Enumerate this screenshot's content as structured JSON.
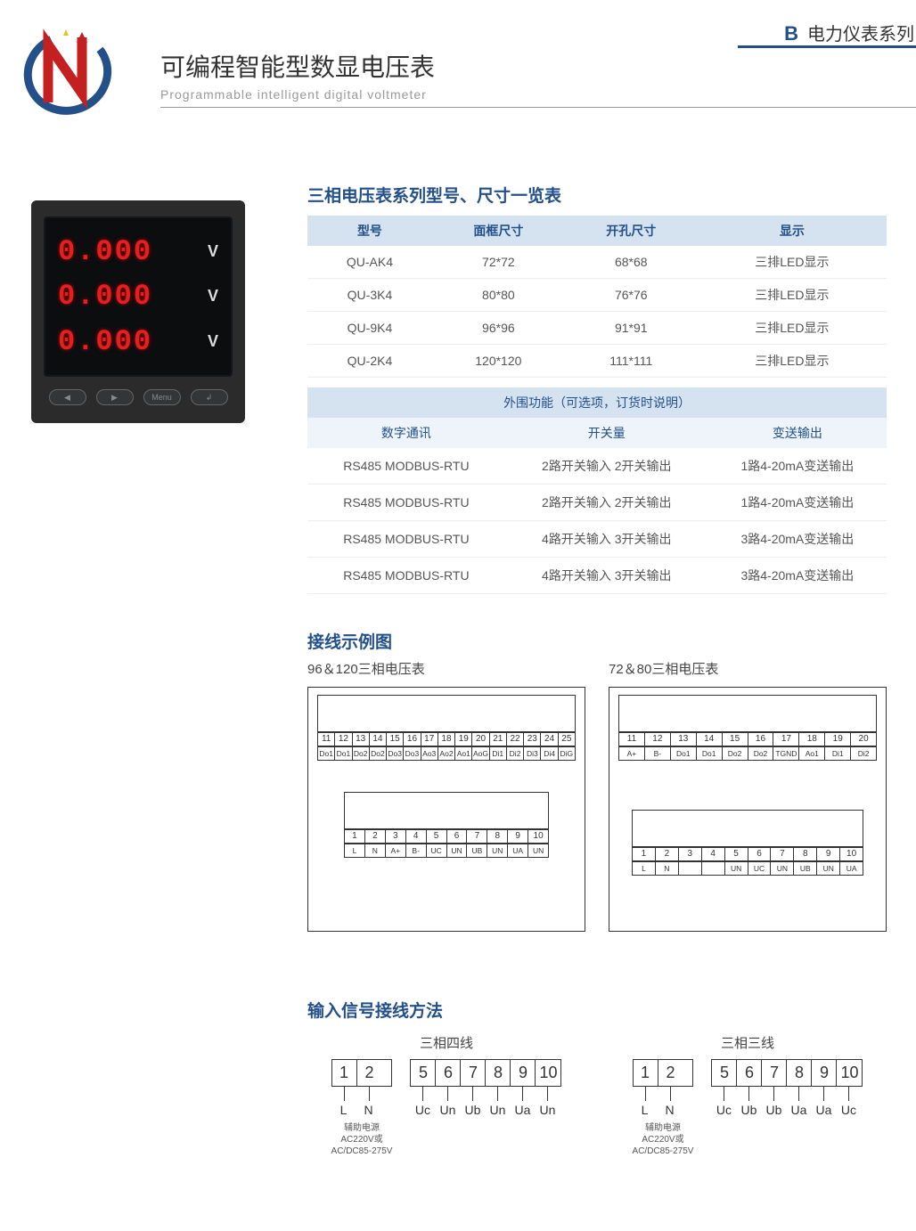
{
  "colors": {
    "brand": "#235088",
    "headerbg": "#d5e3f1",
    "subheaderbg": "#eef4fa",
    "text": "#333333",
    "muted": "#555555",
    "led": "#e12020",
    "panel": "#2b2b2c"
  },
  "header": {
    "letter": "B",
    "series": "电力仪表系列"
  },
  "title": {
    "main": "可编程智能型数显电压表",
    "sub": "Programmable intelligent digital voltmeter"
  },
  "photo": {
    "reading": "0.000",
    "unit": "V",
    "buttons": [
      "◀",
      "▶",
      "Menu",
      "↲"
    ]
  },
  "section1": {
    "title": "三相电压表系列型号、尺寸一览表",
    "columns": [
      "型号",
      "面框尺寸",
      "开孔尺寸",
      "显示"
    ],
    "rows": [
      [
        "QU-AK4",
        "72*72",
        "68*68",
        "三排LED显示"
      ],
      [
        "QU-3K4",
        "80*80",
        "76*76",
        "三排LED显示"
      ],
      [
        "QU-9K4",
        "96*96",
        "91*91",
        "三排LED显示"
      ],
      [
        "QU-2K4",
        "120*120",
        "111*111",
        "三排LED显示"
      ]
    ]
  },
  "section1b": {
    "super": "外围功能（可选项，订货时说明）",
    "cols": [
      "数字通讯",
      "开关量",
      "变送输出"
    ],
    "rows": [
      [
        "RS485 MODBUS-RTU",
        "2路开关输入 2开关输出",
        "1路4-20mA变送输出"
      ],
      [
        "RS485 MODBUS-RTU",
        "2路开关输入 2开关输出",
        "1路4-20mA变送输出"
      ],
      [
        "RS485 MODBUS-RTU",
        "4路开关输入 3开关输出",
        "3路4-20mA变送输出"
      ],
      [
        "RS485 MODBUS-RTU",
        "4路开关输入 3开关输出",
        "3路4-20mA变送输出"
      ]
    ]
  },
  "section2": {
    "title": "接线示例图",
    "left": {
      "label": "96＆120三相电压表",
      "top_nums": [
        "11",
        "12",
        "13",
        "14",
        "15",
        "16",
        "17",
        "18",
        "19",
        "20",
        "21",
        "22",
        "23",
        "24",
        "25"
      ],
      "top_lbls": [
        "Do1",
        "Do1",
        "Do2",
        "Do2",
        "Do3",
        "Do3",
        "Ao3",
        "Ao2",
        "Ao1",
        "AoG",
        "Di1",
        "Di2",
        "Di3",
        "Di4",
        "DiG"
      ],
      "bot_nums": [
        "1",
        "2",
        "3",
        "4",
        "5",
        "6",
        "7",
        "8",
        "9",
        "10"
      ],
      "bot_lbls": [
        "L",
        "N",
        "A+",
        "B-",
        "UC",
        "UN",
        "UB",
        "UN",
        "UA",
        "UN"
      ]
    },
    "right": {
      "label": "72＆80三相电压表",
      "top_nums": [
        "11",
        "12",
        "13",
        "14",
        "15",
        "16",
        "17",
        "18",
        "19",
        "20"
      ],
      "top_lbls": [
        "A+",
        "B-",
        "Do1",
        "Do1",
        "Do2",
        "Do2",
        "TGND",
        "Ao1",
        "Di1",
        "Di2"
      ],
      "bot_nums": [
        "1",
        "2",
        "3",
        "4",
        "5",
        "6",
        "7",
        "8",
        "9",
        "10"
      ],
      "bot_lbls": [
        "L",
        "N",
        "",
        "",
        "UN",
        "UC",
        "UN",
        "UB",
        "UN",
        "UA"
      ]
    }
  },
  "section3": {
    "title": "输入信号接线方法",
    "left": {
      "label": "三相四线",
      "g1": {
        "nums": [
          "1",
          "2"
        ],
        "lbls": [
          "L",
          "N"
        ]
      },
      "g2": {
        "nums": [
          "5",
          "6",
          "7",
          "8",
          "9",
          "10"
        ],
        "lbls": [
          "Uc",
          "Un",
          "Ub",
          "Un",
          "Ua",
          "Un"
        ]
      },
      "note1": "辅助电源",
      "note2": "AC220V或",
      "note3": "AC/DC85-275V"
    },
    "right": {
      "label": "三相三线",
      "g1": {
        "nums": [
          "1",
          "2"
        ],
        "lbls": [
          "L",
          "N"
        ]
      },
      "g2": {
        "nums": [
          "5",
          "6",
          "7",
          "8",
          "9",
          "10"
        ],
        "lbls": [
          "Uc",
          "Ub",
          "Ub",
          "Ua",
          "Ua",
          "Uc"
        ]
      },
      "note1": "辅助电源",
      "note2": "AC220V或",
      "note3": "AC/DC85-275V"
    }
  }
}
